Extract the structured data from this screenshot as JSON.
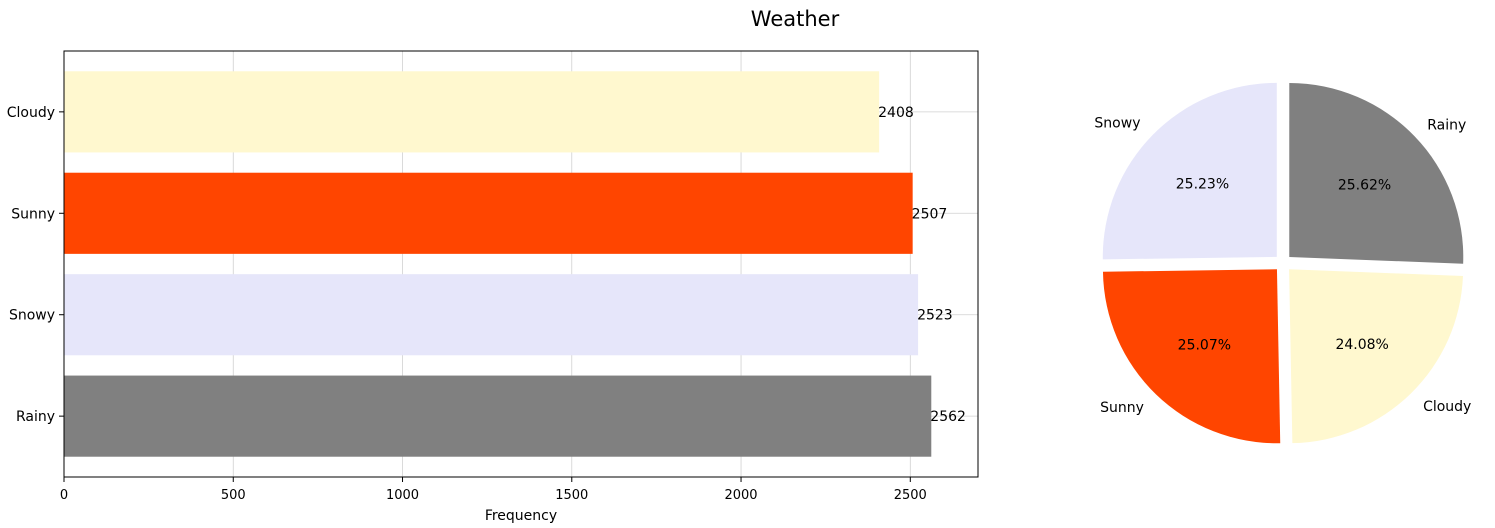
{
  "figure": {
    "title": "Weather"
  },
  "chart_data": [
    {
      "type": "bar",
      "orientation": "horizontal",
      "categories": [
        "Rainy",
        "Snowy",
        "Sunny",
        "Cloudy"
      ],
      "values": [
        2562,
        2523,
        2507,
        2408
      ],
      "colors": [
        "#808080",
        "#e6e6fa",
        "#ff4500",
        "#fff8cf"
      ],
      "title": "",
      "xlabel": "Frequency",
      "ylabel": "",
      "xlim": [
        0,
        2700
      ],
      "xticks": [
        0,
        500,
        1000,
        1500,
        2000,
        2500
      ],
      "grid": true,
      "data_labels": true
    },
    {
      "type": "pie",
      "labels": [
        "Rainy",
        "Cloudy",
        "Sunny",
        "Snowy"
      ],
      "values": [
        2562,
        2408,
        2507,
        2523
      ],
      "percent_labels": [
        "25.62%",
        "24.08%",
        "25.07%",
        "25.23%"
      ],
      "colors": [
        "#808080",
        "#fff8cf",
        "#ff4500",
        "#e6e6fa"
      ],
      "start_angle_deg": 90,
      "direction": "clockwise",
      "exploded": true
    }
  ]
}
